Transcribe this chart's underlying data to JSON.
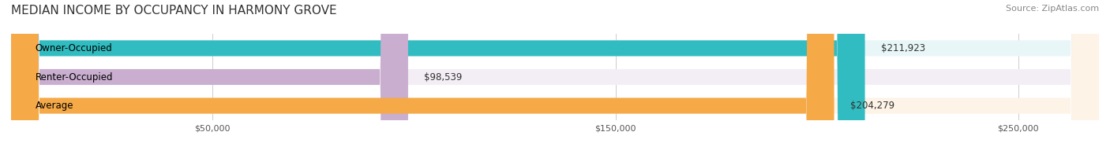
{
  "title": "MEDIAN INCOME BY OCCUPANCY IN HARMONY GROVE",
  "source": "Source: ZipAtlas.com",
  "categories": [
    "Owner-Occupied",
    "Renter-Occupied",
    "Average"
  ],
  "values": [
    211923,
    98539,
    204279
  ],
  "labels": [
    "$211,923",
    "$98,539",
    "$204,279"
  ],
  "bar_colors": [
    "#30bcc0",
    "#c9aed0",
    "#f5a947"
  ],
  "bg_colors": [
    "#e8f6f7",
    "#f3eef5",
    "#fdf3e6"
  ],
  "xlim": [
    0,
    270000
  ],
  "xticks": [
    50000,
    150000,
    250000
  ],
  "xticklabels": [
    "$50,000",
    "$150,000",
    "$250,000"
  ],
  "title_fontsize": 11,
  "source_fontsize": 8,
  "bar_label_fontsize": 8.5,
  "category_fontsize": 8.5,
  "bar_height": 0.55
}
